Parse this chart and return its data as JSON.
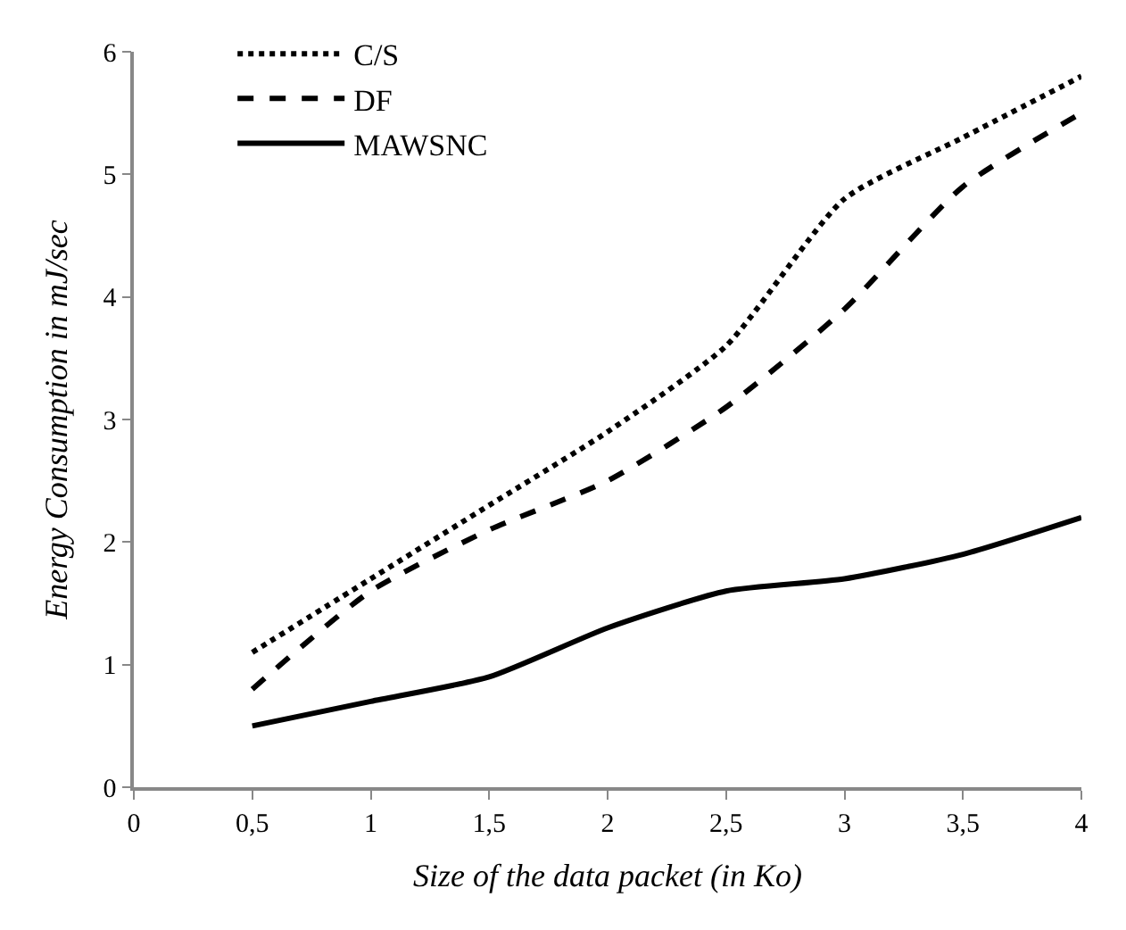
{
  "chart_data": {
    "type": "line",
    "xlabel": "Size of the data packet (in Ko)",
    "ylabel": "Energy Consumption in mJ/sec",
    "x": [
      0.5,
      1,
      1.5,
      2,
      2.5,
      3,
      3.5,
      4
    ],
    "series": [
      {
        "name": "C/S",
        "color": "#000000",
        "line_style": "dotted",
        "values": [
          1.1,
          1.7,
          2.3,
          2.9,
          3.6,
          4.8,
          5.3,
          5.8
        ]
      },
      {
        "name": "DF",
        "color": "#000000",
        "line_style": "dashed",
        "values": [
          0.8,
          1.6,
          2.1,
          2.5,
          3.1,
          3.9,
          4.9,
          5.5
        ]
      },
      {
        "name": "MAWSNC",
        "color": "#000000",
        "line_style": "solid",
        "values": [
          0.5,
          0.7,
          0.9,
          1.3,
          1.6,
          1.7,
          1.9,
          2.2
        ]
      }
    ],
    "xlim": [
      0,
      4
    ],
    "xticks": [
      0,
      {
        "value": 0.5,
        "label": "0,5"
      },
      1,
      {
        "value": 1.5,
        "label": "1,5"
      },
      2,
      {
        "value": 2.5,
        "label": "2,5"
      },
      3,
      {
        "value": 3.5,
        "label": "3,5"
      },
      4
    ],
    "ylim": [
      0,
      6
    ],
    "yticks": [
      0,
      1,
      2,
      3,
      4,
      5,
      6
    ],
    "legend": "top left",
    "marker": "none"
  }
}
